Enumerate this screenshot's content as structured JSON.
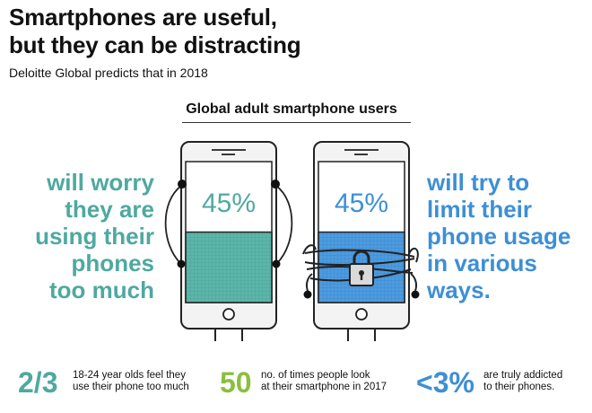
{
  "header": {
    "title_line1": "Smartphones are useful,",
    "title_line2": "but they can be distracting",
    "subtitle": "Deloitte Global predicts that in 2018"
  },
  "section": {
    "title": "Global adult smartphone users"
  },
  "left_claim": {
    "lines": [
      "will worry",
      "they are",
      "using their",
      "phones",
      "too much"
    ],
    "percent": "45%",
    "fill_fraction": 0.45,
    "color": "#4ea9a0"
  },
  "right_claim": {
    "lines": [
      "will try to",
      "limit their",
      "phone usage",
      "in various",
      "ways."
    ],
    "percent": "45%",
    "fill_fraction": 0.45,
    "color": "#3d8fd6"
  },
  "icons": {
    "left_phone": "smartphone-with-earbuds-icon",
    "right_phone": "smartphone-chained-with-padlock-icon",
    "padlock": "padlock-icon"
  },
  "stats": [
    {
      "value": "2/3",
      "line1": "18-24 year olds feel they",
      "line2": "use their phone too much",
      "color": "#4ea9a0"
    },
    {
      "value": "50",
      "line1": "no. of times people look",
      "line2": "at their smartphone in 2017",
      "color": "#8bbf3f"
    },
    {
      "value": "<3%",
      "line1": "are truly addicted",
      "line2": "to their phones.",
      "color": "#3d8fd6"
    }
  ]
}
